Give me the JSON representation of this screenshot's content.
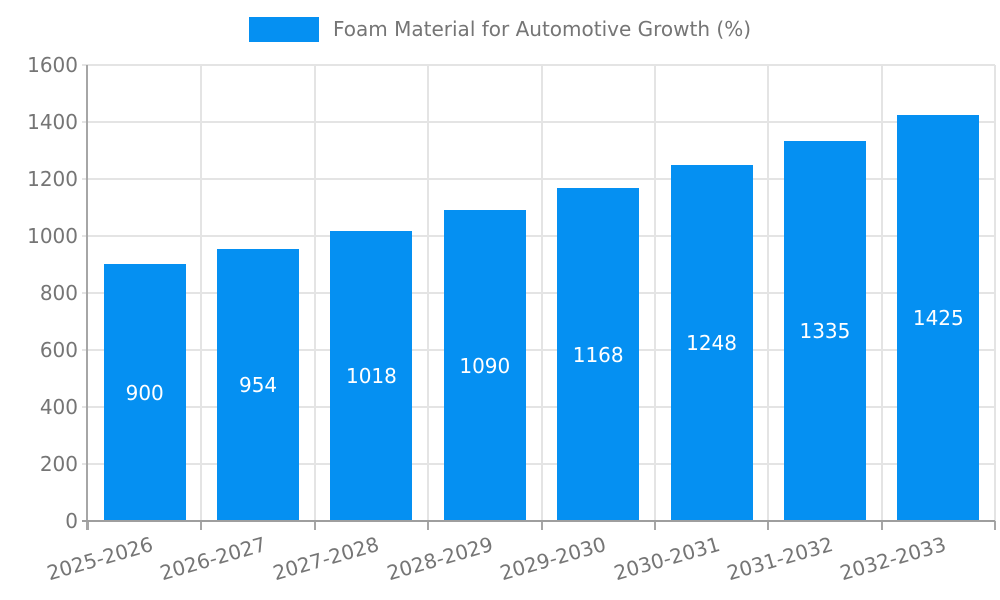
{
  "chart_data": {
    "type": "bar",
    "title": "Foam Material for Automotive Growth (%)",
    "categories": [
      "2025-2026",
      "2026-2027",
      "2027-2028",
      "2028-2029",
      "2029-2030",
      "2030-2031",
      "2031-2032",
      "2032-2033"
    ],
    "values": [
      900,
      954,
      1018,
      1090,
      1168,
      1248,
      1335,
      1425
    ],
    "series_name": "Foam Material for Automotive Growth (%)",
    "xlabel": "",
    "ylabel": "",
    "ylim": [
      0,
      1600
    ],
    "yticks": [
      0,
      200,
      400,
      600,
      800,
      1000,
      1200,
      1400,
      1600
    ],
    "grid": true,
    "legend_position": "top",
    "x_label_rotation": -16,
    "value_labels_inside_bars": true,
    "colors": {
      "bar": "#0590f2",
      "value_label": "#ffffff",
      "axis_text": "#757575",
      "gridline": "#e4e4e4",
      "axis_line": "#a6a6a6",
      "baseline": "#9e9e9e"
    }
  }
}
